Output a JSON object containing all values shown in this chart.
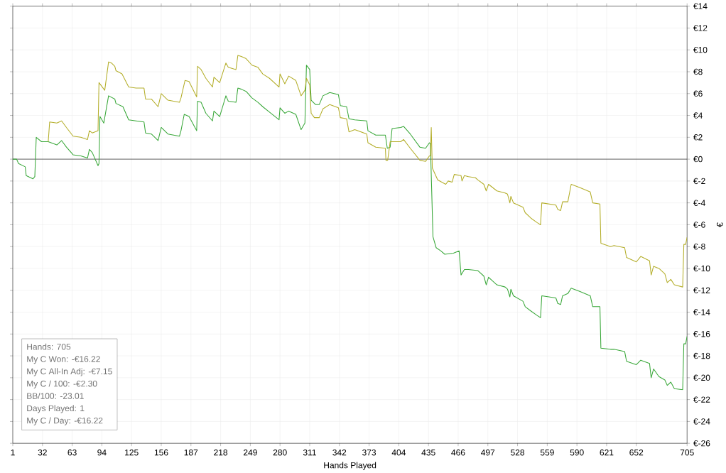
{
  "chart_data": {
    "type": "line",
    "xlabel": "Hands Played",
    "ylabel": "€",
    "x": [
      1,
      5,
      7,
      14,
      15,
      22,
      24,
      25.5,
      31,
      38,
      39.5,
      47,
      52,
      57,
      64,
      72,
      79,
      81,
      84,
      90,
      91,
      92,
      96,
      97,
      101,
      104,
      107.5,
      108.7,
      115,
      116,
      122,
      129.7,
      138,
      139.6,
      145.7,
      152.7,
      156,
      163,
      175,
      176.6,
      180,
      180.8,
      185,
      193,
      193.9,
      197.6,
      202.6,
      209.5,
      211,
      217,
      223.5,
      226,
      234,
      236,
      239.6,
      244.6,
      250.7,
      257,
      262,
      269,
      279,
      280,
      285,
      289,
      296.5,
      302,
      306,
      307.6,
      311,
      312.5,
      315.9,
      317,
      321,
      324.8,
      332,
      341,
      343,
      349.5,
      352,
      358,
      370.6,
      371.8,
      380,
      390,
      390.6,
      392,
      392.4,
      395,
      397,
      406,
      409,
      416,
      426,
      432,
      436,
      437,
      437.9,
      439,
      439.7,
      443,
      444.6,
      448,
      452,
      453,
      455.6,
      459.7,
      461,
      461.9,
      467,
      469,
      470,
      472.5,
      476.8,
      484,
      486.6,
      492.8,
      495.3,
      497.7,
      506.4,
      515,
      517.5,
      520,
      521,
      523.7,
      533.6,
      536,
      542,
      548.4,
      552,
      553.3,
      568,
      570,
      573,
      575,
      580.5,
      584,
      592.8,
      603.9,
      606.5,
      614,
      615,
      625,
      628.7,
      639.8,
      641.8,
      652,
      656.6,
      665.8,
      667.5,
      670,
      675.6,
      681.8,
      684.3,
      688,
      691.7,
      700.4,
      701.6,
      703.5,
      705
    ],
    "series": [
      {
        "color": "#3aa83a",
        "values": [
          0,
          0,
          -0.4,
          -0.7,
          -1.5,
          -1.8,
          -1.6,
          2.0,
          1.6,
          1.6,
          null,
          1.3,
          1.7,
          1.1,
          0.4,
          0.3,
          0.1,
          0.9,
          0.6,
          -0.6,
          -0.4,
          3.9,
          3.3,
          null,
          5.8,
          null,
          5.5,
          5.1,
          null,
          4.8,
          3.6,
          3.5,
          3.4,
          2.4,
          2.3,
          1.7,
          2.9,
          2.3,
          2.1,
          2.6,
          4.1,
          null,
          3.9,
          2.6,
          5.3,
          5.2,
          4.2,
          3.5,
          4.4,
          3.9,
          5.8,
          5.3,
          5.2,
          6.5,
          6.4,
          6.2,
          5.6,
          5.2,
          4.8,
          4.3,
          3.6,
          4.7,
          4.2,
          4.4,
          4.1,
          2.7,
          3.3,
          8.6,
          8.2,
          5.4,
          null,
          5.0,
          5.0,
          5.8,
          6.1,
          5.9,
          4.9,
          4.8,
          3.7,
          3.6,
          3.5,
          2.6,
          2.2,
          2.2,
          null,
          1.0,
          null,
          1.1,
          2.8,
          2.9,
          3.0,
          2.3,
          1.1,
          1.0,
          1.5,
          1.4,
          null,
          null,
          -7.1,
          -8.1,
          null,
          -8.4,
          -8.7,
          null,
          null,
          null,
          -8.6,
          null,
          -8.4,
          -10.6,
          null,
          -10.1,
          -10.1,
          null,
          -10.2,
          -10.7,
          -11.5,
          -10.8,
          -11.5,
          -11.7,
          -11.9,
          -12.6,
          -11.9,
          -12.5,
          -13.0,
          -13.5,
          -13.9,
          -14.3,
          -14.5,
          -12.5,
          -12.7,
          -13.2,
          -13.3,
          -12.5,
          -12.3,
          -11.8,
          -12.1,
          -12.5,
          -13.5,
          -13.5,
          -17.3,
          -17.4,
          -17.4,
          -17.6,
          -18.5,
          -18.8,
          -18.4,
          -18.7,
          -20.0,
          -19.2,
          -19.9,
          -20.2,
          -20.7,
          -20.4,
          -21.0,
          -21.1,
          -16.9,
          -16.9,
          -16.22
        ]
      },
      {
        "color": "#b4ae2a",
        "values": [
          null,
          null,
          null,
          null,
          null,
          null,
          null,
          null,
          null,
          1.6,
          3.4,
          3.3,
          3.5,
          2.9,
          2.1,
          2.0,
          1.8,
          2.6,
          2.4,
          2.6,
          7.0,
          null,
          null,
          6.3,
          8.9,
          8.8,
          8.5,
          8.1,
          7.8,
          null,
          6.6,
          6.5,
          6.5,
          5.5,
          5.5,
          4.8,
          6.0,
          5.4,
          5.2,
          5.6,
          null,
          7.2,
          7.1,
          5.7,
          8.5,
          8.2,
          7.4,
          6.6,
          7.5,
          7.0,
          8.8,
          8.4,
          8.2,
          9.5,
          9.4,
          9.2,
          8.6,
          8.4,
          7.8,
          7.4,
          6.6,
          7.8,
          6.9,
          7.6,
          7.2,
          5.8,
          6.3,
          7.4,
          6.8,
          4.2,
          3.8,
          null,
          3.8,
          4.6,
          5.0,
          4.7,
          3.8,
          3.7,
          2.5,
          2.7,
          2.3,
          1.5,
          1.1,
          1.0,
          -0.1,
          null,
          -0.1,
          1.6,
          null,
          1.6,
          1.8,
          1.0,
          -0.1,
          -0.2,
          0.3,
          0.3,
          2.9,
          -0.8,
          null,
          null,
          -1.9,
          null,
          null,
          -2.3,
          -2.0,
          -2.1,
          null,
          -1.4,
          null,
          -1.5,
          -2.0,
          -1.5,
          -1.6,
          -1.7,
          -1.9,
          -2.3,
          -2.9,
          -2.3,
          -2.9,
          -3.1,
          -3.2,
          -4.0,
          -3.4,
          -4.0,
          -4.4,
          -4.9,
          -5.4,
          -5.8,
          -6.0,
          -4.0,
          -4.2,
          -4.6,
          -4.7,
          -3.9,
          -3.9,
          -2.3,
          -2.6,
          -3.0,
          -4.0,
          -4.1,
          -7.7,
          -8.0,
          -7.9,
          -8.1,
          -9.0,
          -9.4,
          -8.9,
          -9.3,
          -10.6,
          -9.8,
          -10.0,
          -10.5,
          -11.3,
          -11.0,
          -11.5,
          -11.7,
          -7.8,
          -7.8,
          -7.15
        ]
      }
    ],
    "xlim": [
      1,
      705
    ],
    "xticks": [
      1,
      32,
      63,
      94,
      125,
      156,
      187,
      218,
      249,
      280,
      311,
      342,
      373,
      404,
      435,
      466,
      497,
      528,
      559,
      590,
      621,
      652,
      705
    ],
    "ylim": [
      -26,
      14
    ],
    "yticks": [
      {
        "value": -26,
        "label": "€-26"
      },
      {
        "value": -24,
        "label": "€-24"
      },
      {
        "value": -22,
        "label": "€-22"
      },
      {
        "value": -20,
        "label": "€-20"
      },
      {
        "value": -18,
        "label": "€-18"
      },
      {
        "value": -16,
        "label": "€-16"
      },
      {
        "value": -14,
        "label": "€-14"
      },
      {
        "value": -12,
        "label": "€-12"
      },
      {
        "value": -10,
        "label": "€-10"
      },
      {
        "value": -8,
        "label": "€-8"
      },
      {
        "value": -6,
        "label": "€-6"
      },
      {
        "value": -4,
        "label": "€-4"
      },
      {
        "value": -2,
        "label": "€-2"
      },
      {
        "value": 0,
        "label": "€0"
      },
      {
        "value": 2,
        "label": "€2"
      },
      {
        "value": 4,
        "label": "€4"
      },
      {
        "value": 6,
        "label": "€6"
      },
      {
        "value": 8,
        "label": "€8"
      },
      {
        "value": 10,
        "label": "€10"
      },
      {
        "value": 12,
        "label": "€12"
      },
      {
        "value": 14,
        "label": "€14"
      }
    ],
    "ref_lines": [
      {
        "axis": "y",
        "value": 0,
        "color": "#000000"
      }
    ],
    "grid": true,
    "marker": "none",
    "line_style": "solid",
    "annotations": [
      "Hands: 705",
      "My C Won: -€16.22",
      "My C All-In Adj: -€7.15",
      "My C / 100: -€2.30",
      "BB/100: -23.01",
      "Days Played: 1",
      "My C / Day: -€16.22"
    ]
  }
}
